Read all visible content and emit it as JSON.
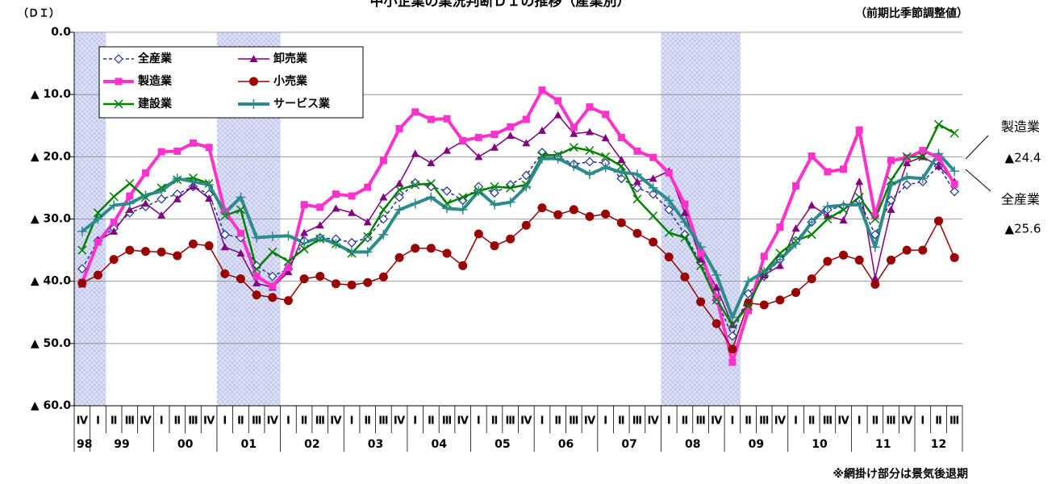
{
  "chart_data": {
    "type": "line",
    "title": "中小企業の業況判断ＤＩの推移（産業別）",
    "y_axis_label": "（ＤＩ）",
    "subtitle": "（前期比季節調整値）",
    "note": "※網掛け部分は景気後退期",
    "categories": [
      "Ⅳ",
      "Ⅰ",
      "Ⅱ",
      "Ⅲ",
      "Ⅳ",
      "Ⅰ",
      "Ⅱ",
      "Ⅲ",
      "Ⅳ",
      "Ⅰ",
      "Ⅱ",
      "Ⅲ",
      "Ⅳ",
      "Ⅰ",
      "Ⅱ",
      "Ⅲ",
      "Ⅳ",
      "Ⅰ",
      "Ⅱ",
      "Ⅲ",
      "Ⅳ",
      "Ⅰ",
      "Ⅱ",
      "Ⅲ",
      "Ⅳ",
      "Ⅰ",
      "Ⅱ",
      "Ⅲ",
      "Ⅳ",
      "Ⅰ",
      "Ⅱ",
      "Ⅲ",
      "Ⅳ",
      "Ⅰ",
      "Ⅱ",
      "Ⅲ",
      "Ⅳ",
      "Ⅰ",
      "Ⅱ",
      "Ⅲ",
      "Ⅳ",
      "Ⅰ",
      "Ⅱ",
      "Ⅲ",
      "Ⅳ",
      "Ⅰ",
      "Ⅱ",
      "Ⅲ",
      "Ⅳ",
      "Ⅰ",
      "Ⅱ",
      "Ⅲ",
      "Ⅳ",
      "Ⅰ",
      "Ⅱ",
      "Ⅲ"
    ],
    "year_labels": [
      "98",
      "99",
      "00",
      "01",
      "02",
      "03",
      "04",
      "05",
      "06",
      "07",
      "08",
      "09",
      "10",
      "11",
      "12"
    ],
    "shaded_ranges": [
      [
        0,
        1
      ],
      [
        9,
        12
      ],
      [
        37,
        41
      ]
    ],
    "ylim": [
      -60,
      0
    ],
    "yticks": [
      {
        "value": 0,
        "label": "0.0"
      },
      {
        "value": -10,
        "label": "▲ 10.0"
      },
      {
        "value": -20,
        "label": "▲ 20.0"
      },
      {
        "value": -30,
        "label": "▲ 30.0"
      },
      {
        "value": -40,
        "label": "▲ 40.0"
      },
      {
        "value": -50,
        "label": "▲ 50.0"
      },
      {
        "value": -60,
        "label": "▲ 60.0"
      }
    ],
    "grid": true,
    "series": [
      {
        "name": "全産業",
        "color": "#1f2f9c",
        "marker": "diamond",
        "dash": true,
        "width": 1.5,
        "values": [
          -38.0,
          -33.5,
          -31.5,
          -29.0,
          -28.0,
          -26.8,
          -26.0,
          -24.8,
          -26.0,
          -32.5,
          -33.0,
          -37.5,
          -39.2,
          -38.0,
          -33.5,
          -33.0,
          -33.2,
          -33.8,
          -33.0,
          -30.0,
          -26.5,
          -24.2,
          -24.8,
          -25.5,
          -27.0,
          -24.8,
          -25.8,
          -24.5,
          -23.0,
          -19.3,
          -20.0,
          -21.2,
          -20.8,
          -21.0,
          -23.5,
          -25.0,
          -26.0,
          -28.5,
          -32.5,
          -37.0,
          -43.0,
          -48.8,
          -42.0,
          -39.2,
          -36.5,
          -33.5,
          -30.5,
          -28.5,
          -28.0,
          -27.0,
          -32.5,
          -27.0,
          -24.5,
          -24.0,
          -21.5,
          -25.6
        ]
      },
      {
        "name": "卸売業",
        "color": "#800080",
        "marker": "triangle",
        "dash": false,
        "width": 1.5,
        "values": [
          -40.5,
          -33.5,
          -32.0,
          -28.5,
          -27.5,
          -29.4,
          -26.8,
          -24.7,
          -26.7,
          -34.5,
          -35.5,
          -40.3,
          -41.0,
          -38.5,
          -32.2,
          -31.0,
          -28.3,
          -29.0,
          -30.5,
          -26.5,
          -24.3,
          -19.5,
          -21.0,
          -19.0,
          -17.5,
          -20.0,
          -18.5,
          -16.6,
          -17.8,
          -15.8,
          -13.3,
          -16.3,
          -16.0,
          -17.0,
          -20.5,
          -24.0,
          -23.5,
          -22.3,
          -29.0,
          -36.5,
          -41.0,
          -47.0,
          -43.5,
          -39.0,
          -37.5,
          -31.5,
          -27.8,
          -29.5,
          -30.2,
          -24.0,
          -39.5,
          -28.5,
          -21.0,
          -20.0,
          -21.5,
          -24.0
        ]
      },
      {
        "name": "製造業",
        "color": "#ff33cc",
        "marker": "square",
        "dash": false,
        "width": 4,
        "values": [
          -40.2,
          -33.7,
          -30.5,
          -26.3,
          -22.6,
          -19.2,
          -19.1,
          -17.8,
          -18.5,
          -28.8,
          -32.3,
          -39.2,
          -40.8,
          -37.8,
          -27.7,
          -28.1,
          -26.0,
          -26.3,
          -24.9,
          -20.6,
          -15.5,
          -12.8,
          -14.0,
          -13.9,
          -17.4,
          -16.9,
          -16.4,
          -15.2,
          -14.0,
          -9.3,
          -11.0,
          -15.3,
          -12.0,
          -13.2,
          -16.9,
          -19.1,
          -20.1,
          -22.6,
          -27.6,
          -35.5,
          -42.6,
          -53.0,
          -44.7,
          -36.0,
          -31.3,
          -24.7,
          -19.9,
          -22.4,
          -22.0,
          -15.7,
          -29.5,
          -20.6,
          -20.2,
          -19.0,
          -20.1,
          -24.4
        ]
      },
      {
        "name": "小売業",
        "color": "#990000",
        "marker": "circle",
        "dash": false,
        "width": 1.5,
        "values": [
          -40.3,
          -39.0,
          -36.5,
          -35.0,
          -35.2,
          -35.3,
          -35.9,
          -34.0,
          -34.3,
          -38.8,
          -39.6,
          -42.2,
          -42.6,
          -43.1,
          -39.6,
          -39.2,
          -40.4,
          -40.6,
          -40.2,
          -39.3,
          -36.2,
          -34.7,
          -34.7,
          -35.5,
          -37.5,
          -32.4,
          -34.3,
          -33.2,
          -31.0,
          -28.2,
          -29.3,
          -28.5,
          -29.6,
          -29.2,
          -30.6,
          -32.3,
          -33.7,
          -36.1,
          -39.3,
          -43.3,
          -46.8,
          -50.9,
          -43.5,
          -43.8,
          -43.0,
          -41.8,
          -39.6,
          -36.8,
          -35.8,
          -36.6,
          -40.5,
          -36.6,
          -35.0,
          -35.0,
          -30.3,
          -36.2
        ]
      },
      {
        "name": "建設業",
        "color": "#008000",
        "marker": "x",
        "dash": false,
        "width": 2.5,
        "values": [
          -35.0,
          -29.0,
          -26.4,
          -24.3,
          -26.5,
          -25.0,
          -23.7,
          -23.4,
          -24.3,
          -29.5,
          -28.5,
          -38.0,
          -35.3,
          -36.8,
          -34.8,
          -33.2,
          -34.0,
          -35.5,
          -32.8,
          -28.5,
          -25.3,
          -24.5,
          -24.3,
          -27.5,
          -26.5,
          -25.5,
          -24.8,
          -25.0,
          -24.5,
          -19.8,
          -19.7,
          -18.5,
          -19.0,
          -20.0,
          -21.5,
          -26.8,
          -29.5,
          -32.2,
          -33.0,
          -37.5,
          -43.0,
          -47.0,
          -44.0,
          -38.5,
          -35.5,
          -33.5,
          -32.5,
          -30.0,
          -28.5,
          -26.5,
          -30.0,
          -23.8,
          -20.0,
          -20.0,
          -14.8,
          -16.2
        ]
      },
      {
        "name": "サービス業",
        "color": "#2e8b8b",
        "marker": "plus",
        "dash": false,
        "width": 4,
        "values": [
          -32.0,
          -30.0,
          -27.8,
          -27.5,
          -26.2,
          -25.5,
          -23.5,
          -24.0,
          -24.5,
          -29.0,
          -26.5,
          -33.0,
          -32.8,
          -32.7,
          -33.8,
          -33.0,
          -34.0,
          -35.3,
          -35.3,
          -32.5,
          -28.5,
          -27.5,
          -26.5,
          -28.3,
          -28.5,
          -25.5,
          -27.7,
          -27.3,
          -24.8,
          -20.3,
          -20.3,
          -21.5,
          -22.8,
          -21.7,
          -22.5,
          -22.8,
          -25.0,
          -27.0,
          -30.5,
          -34.5,
          -39.0,
          -45.8,
          -40.0,
          -38.5,
          -36.5,
          -34.0,
          -30.5,
          -28.0,
          -27.8,
          -27.7,
          -34.5,
          -24.5,
          -23.3,
          -23.5,
          -19.5,
          -22.3
        ]
      }
    ],
    "annotations": [
      {
        "text": "製造業"
      },
      {
        "text": "▲24.4"
      },
      {
        "text": "全産業"
      },
      {
        "text": "▲25.6"
      }
    ]
  }
}
